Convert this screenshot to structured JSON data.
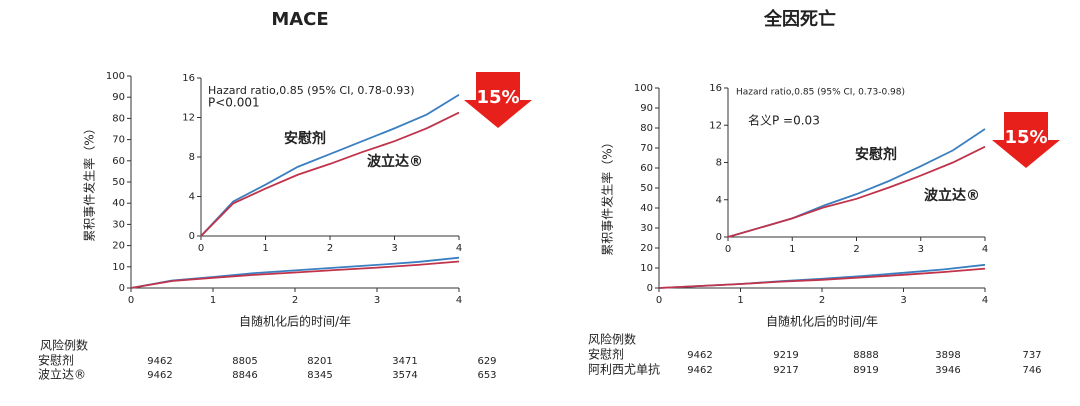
{
  "chart_data": [
    {
      "type": "line",
      "title": "MACE",
      "x_label": "自随机化后的时间/年",
      "y_label": "累积事件发生率（%）",
      "x": [
        0,
        0.5,
        1,
        1.5,
        2,
        2.5,
        3,
        3.5,
        4
      ],
      "xlim": [
        0,
        4
      ],
      "xticks": [
        0,
        1,
        2,
        3,
        4
      ],
      "ylim": [
        0,
        100
      ],
      "yticks": [
        0,
        10,
        20,
        30,
        40,
        50,
        60,
        70,
        80,
        90,
        100
      ],
      "inset": {
        "xlim": [
          0,
          4
        ],
        "xticks": [
          0,
          1,
          2,
          3,
          4
        ],
        "ylim": [
          0,
          16
        ],
        "yticks": [
          0,
          4,
          8,
          12,
          16
        ]
      },
      "annotations": [
        "Hazard ratio,0.85 (95% CI, 0.78-0.93)",
        "P<0.001"
      ],
      "reduction_label": "15%",
      "series": [
        {
          "name": "安慰剂",
          "color": "#3a7fc1",
          "values": [
            0,
            3.5,
            5.2,
            7.0,
            8.3,
            9.6,
            10.9,
            12.3,
            14.3
          ]
        },
        {
          "name": "波立达®",
          "color": "#c0334a",
          "values": [
            0,
            3.3,
            4.8,
            6.2,
            7.3,
            8.5,
            9.6,
            10.9,
            12.5
          ]
        }
      ]
    },
    {
      "type": "line",
      "title": "全因死亡",
      "x_label": "自随机化后的时间/年",
      "y_label": "累积事件发生率（%）",
      "x": [
        0,
        0.5,
        1,
        1.5,
        2,
        2.5,
        3,
        3.5,
        4
      ],
      "xlim": [
        0,
        4
      ],
      "xticks": [
        0,
        1,
        2,
        3,
        4
      ],
      "ylim": [
        0,
        100
      ],
      "yticks": [
        0,
        10,
        20,
        30,
        40,
        50,
        60,
        70,
        80,
        90,
        100
      ],
      "inset": {
        "xlim": [
          0,
          4
        ],
        "xticks": [
          0,
          1,
          2,
          3,
          4
        ],
        "ylim": [
          0,
          16
        ],
        "yticks": [
          0,
          4,
          8,
          12,
          16
        ]
      },
      "annotations": [
        "Hazard ratio,0.85 (95% CI, 0.73-0.98)",
        "名义P =0.03"
      ],
      "reduction_label": "15%",
      "series": [
        {
          "name": "安慰剂",
          "color": "#3a7fc1",
          "values": [
            0,
            1.0,
            2.0,
            3.4,
            4.6,
            6.0,
            7.6,
            9.3,
            11.6
          ]
        },
        {
          "name": "波立达®",
          "color": "#c0334a",
          "values": [
            0,
            1.0,
            2.0,
            3.2,
            4.1,
            5.3,
            6.6,
            8.0,
            9.7
          ]
        }
      ]
    }
  ],
  "risk_tables": [
    {
      "title": "风险例数",
      "rows": [
        {
          "label": "安慰剂",
          "values": [
            9462,
            8805,
            8201,
            3471,
            629
          ]
        },
        {
          "label": "波立达®",
          "values": [
            9462,
            8846,
            8345,
            3574,
            653
          ]
        }
      ]
    },
    {
      "title": "风险例数",
      "rows": [
        {
          "label": "安慰剂",
          "values": [
            9462,
            9219,
            8888,
            3898,
            737
          ]
        },
        {
          "label": "阿利西尤单抗",
          "values": [
            9462,
            9217,
            8919,
            3946,
            746
          ]
        }
      ]
    }
  ]
}
